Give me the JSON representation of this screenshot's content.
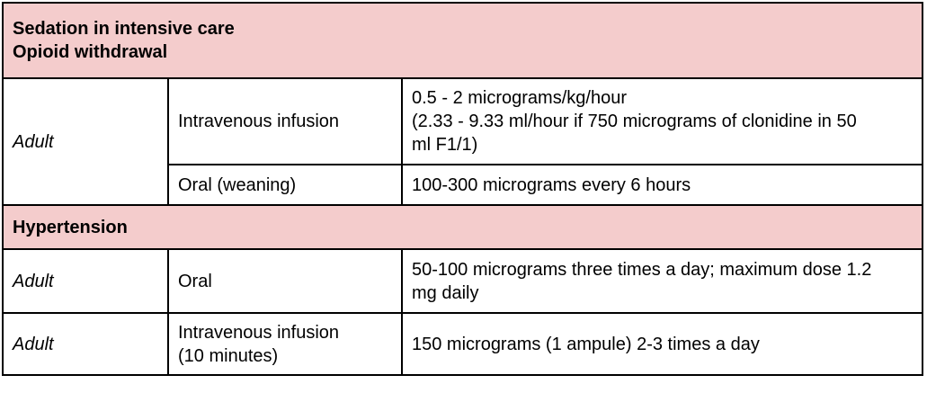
{
  "table": {
    "colors": {
      "section_header_bg": "#f4cccc",
      "border": "#000000",
      "text": "#000000",
      "body_bg": "#ffffff"
    },
    "sections": [
      {
        "header_lines": [
          "Sedation in intensive care",
          "Opioid withdrawal"
        ],
        "rows": [
          {
            "patient": "Adult",
            "route_lines": [
              "Intravenous infusion"
            ],
            "dose_lines": [
              "0.5 - 2 micrograms/kg/hour",
              "(2.33 - 9.33 ml/hour if 750 micrograms of clonidine in 50 ml F1/1)"
            ]
          },
          {
            "route_lines": [
              "Oral (weaning)"
            ],
            "dose_lines": [
              "100-300 micrograms every 6 hours"
            ]
          }
        ]
      },
      {
        "header_lines": [
          "Hypertension"
        ],
        "rows": [
          {
            "patient": "Adult",
            "route_lines": [
              "Oral"
            ],
            "dose_lines": [
              "50-100 micrograms three times a day; maximum dose 1.2 mg daily"
            ]
          },
          {
            "patient": "Adult",
            "route_lines": [
              "Intravenous infusion",
              "(10 minutes)"
            ],
            "dose_lines": [
              "150 micrograms (1 ampule) 2-3 times a day"
            ]
          }
        ]
      }
    ]
  }
}
